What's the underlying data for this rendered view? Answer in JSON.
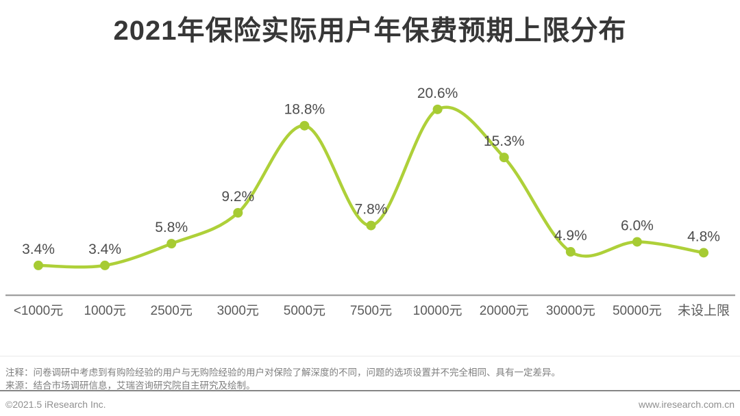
{
  "title": "2021年保险实际用户年保费预期上限分布",
  "chart_data": {
    "type": "line",
    "title": "2021年保险实际用户年保费预期上限分布",
    "categories": [
      "<1000元",
      "1000元",
      "2500元",
      "3000元",
      "5000元",
      "7500元",
      "10000元",
      "20000元",
      "30000元",
      "50000元",
      "未设上限"
    ],
    "values": [
      3.4,
      3.4,
      5.8,
      9.2,
      18.8,
      7.8,
      20.6,
      15.3,
      4.9,
      6.0,
      4.8
    ],
    "point_labels": [
      "3.4%",
      "3.4%",
      "5.8%",
      "9.2%",
      "18.8%",
      "7.8%",
      "20.6%",
      "15.3%",
      "4.9%",
      "6.0%",
      "4.8%"
    ],
    "xlabel": "",
    "ylabel": "",
    "ylim": [
      0,
      25
    ],
    "grid": false,
    "legend": null,
    "unit": "%",
    "colors": {
      "line": "#aed039",
      "point": "#a6cb33",
      "point_label": "#4d4d4d",
      "axis_line": "#909090",
      "tick_label": "#5a5a5a"
    }
  },
  "notes": {
    "note": "注释：问卷调研中考虑到有购险经验的用户与无购险经验的用户对保险了解深度的不同，问题的选项设置并不完全相同、具有一定差异。",
    "source": "来源：结合市场调研信息，艾瑞咨询研究院自主研究及绘制。"
  },
  "footer": {
    "copyright": "©2021.5 iResearch Inc.",
    "website": "www.iresearch.com.cn"
  }
}
